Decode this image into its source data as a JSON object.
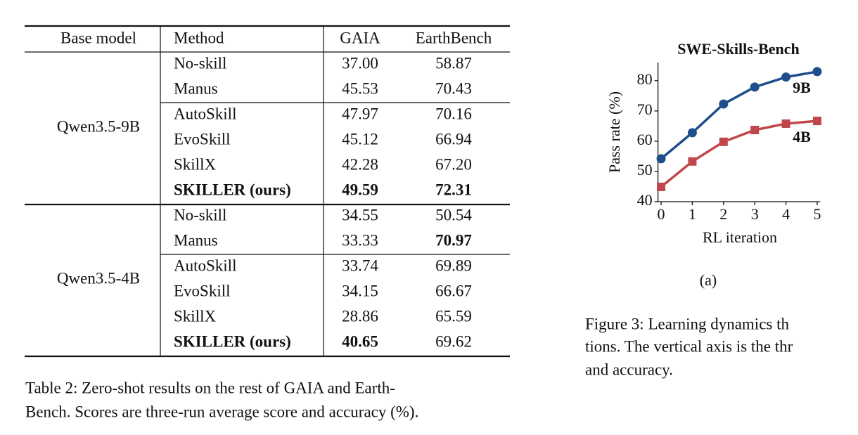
{
  "table": {
    "header": [
      "Base model",
      "Method",
      "GAIA",
      "EarthBench"
    ],
    "groups": [
      {
        "base_model": "Qwen3.5-9B",
        "rows": [
          {
            "cells": [
              "No-skill",
              "37.00",
              "58.87"
            ],
            "bold": [
              false,
              false,
              false
            ]
          },
          {
            "cells": [
              "Manus",
              "45.53",
              "70.43"
            ],
            "bold": [
              false,
              false,
              false
            ]
          },
          {
            "cells": [
              "AutoSkill",
              "47.97",
              "70.16"
            ],
            "bold": [
              false,
              false,
              false
            ]
          },
          {
            "cells": [
              "EvoSkill",
              "45.12",
              "66.94"
            ],
            "bold": [
              false,
              false,
              false
            ]
          },
          {
            "cells": [
              "SkillX",
              "42.28",
              "67.20"
            ],
            "bold": [
              false,
              false,
              false
            ]
          },
          {
            "cells": [
              "SKILLER (ours)",
              "49.59",
              "72.31"
            ],
            "bold": [
              true,
              true,
              true
            ]
          }
        ]
      },
      {
        "base_model": "Qwen3.5-4B",
        "rows": [
          {
            "cells": [
              "No-skill",
              "34.55",
              "50.54"
            ],
            "bold": [
              false,
              false,
              false
            ]
          },
          {
            "cells": [
              "Manus",
              "33.33",
              "70.97"
            ],
            "bold": [
              false,
              false,
              true
            ]
          },
          {
            "cells": [
              "AutoSkill",
              "33.74",
              "69.89"
            ],
            "bold": [
              false,
              false,
              false
            ]
          },
          {
            "cells": [
              "EvoSkill",
              "34.15",
              "66.67"
            ],
            "bold": [
              false,
              false,
              false
            ]
          },
          {
            "cells": [
              "SkillX",
              "28.86",
              "65.59"
            ],
            "bold": [
              false,
              false,
              false
            ]
          },
          {
            "cells": [
              "SKILLER (ours)",
              "40.65",
              "69.62"
            ],
            "bold": [
              true,
              true,
              false
            ]
          }
        ]
      }
    ],
    "caption": [
      "Table 2: Zero-shot results on the rest of GAIA and Earth-",
      "Bench. Scores are three-run average score and accuracy (%)."
    ]
  },
  "chart_data": {
    "type": "line",
    "title": "SWE-Skills-Bench",
    "x_label": "RL iteration",
    "y_label": "Pass rate (%)",
    "x": [
      0,
      1,
      2,
      3,
      4,
      5
    ],
    "xlim": [
      -0.1,
      5.1
    ],
    "xticks": [
      0,
      1,
      2,
      3,
      4,
      5
    ],
    "ylim": [
      40,
      86
    ],
    "yticks": [
      40,
      50,
      60,
      70,
      80
    ],
    "series": [
      {
        "name": "9B",
        "color": "#1c4f8c",
        "marker": "circle",
        "values": [
          54.2,
          62.8,
          72.3,
          77.9,
          81.2,
          83.0
        ]
      },
      {
        "name": "4B",
        "color": "#c0474a",
        "marker": "square",
        "values": [
          44.9,
          53.3,
          59.8,
          63.7,
          65.8,
          66.7
        ]
      }
    ],
    "subfigure_label": "(a)"
  },
  "figure_caption": [
    "Figure 3: Learning dynamics th",
    "tions. The vertical axis is the thr",
    "and accuracy."
  ]
}
